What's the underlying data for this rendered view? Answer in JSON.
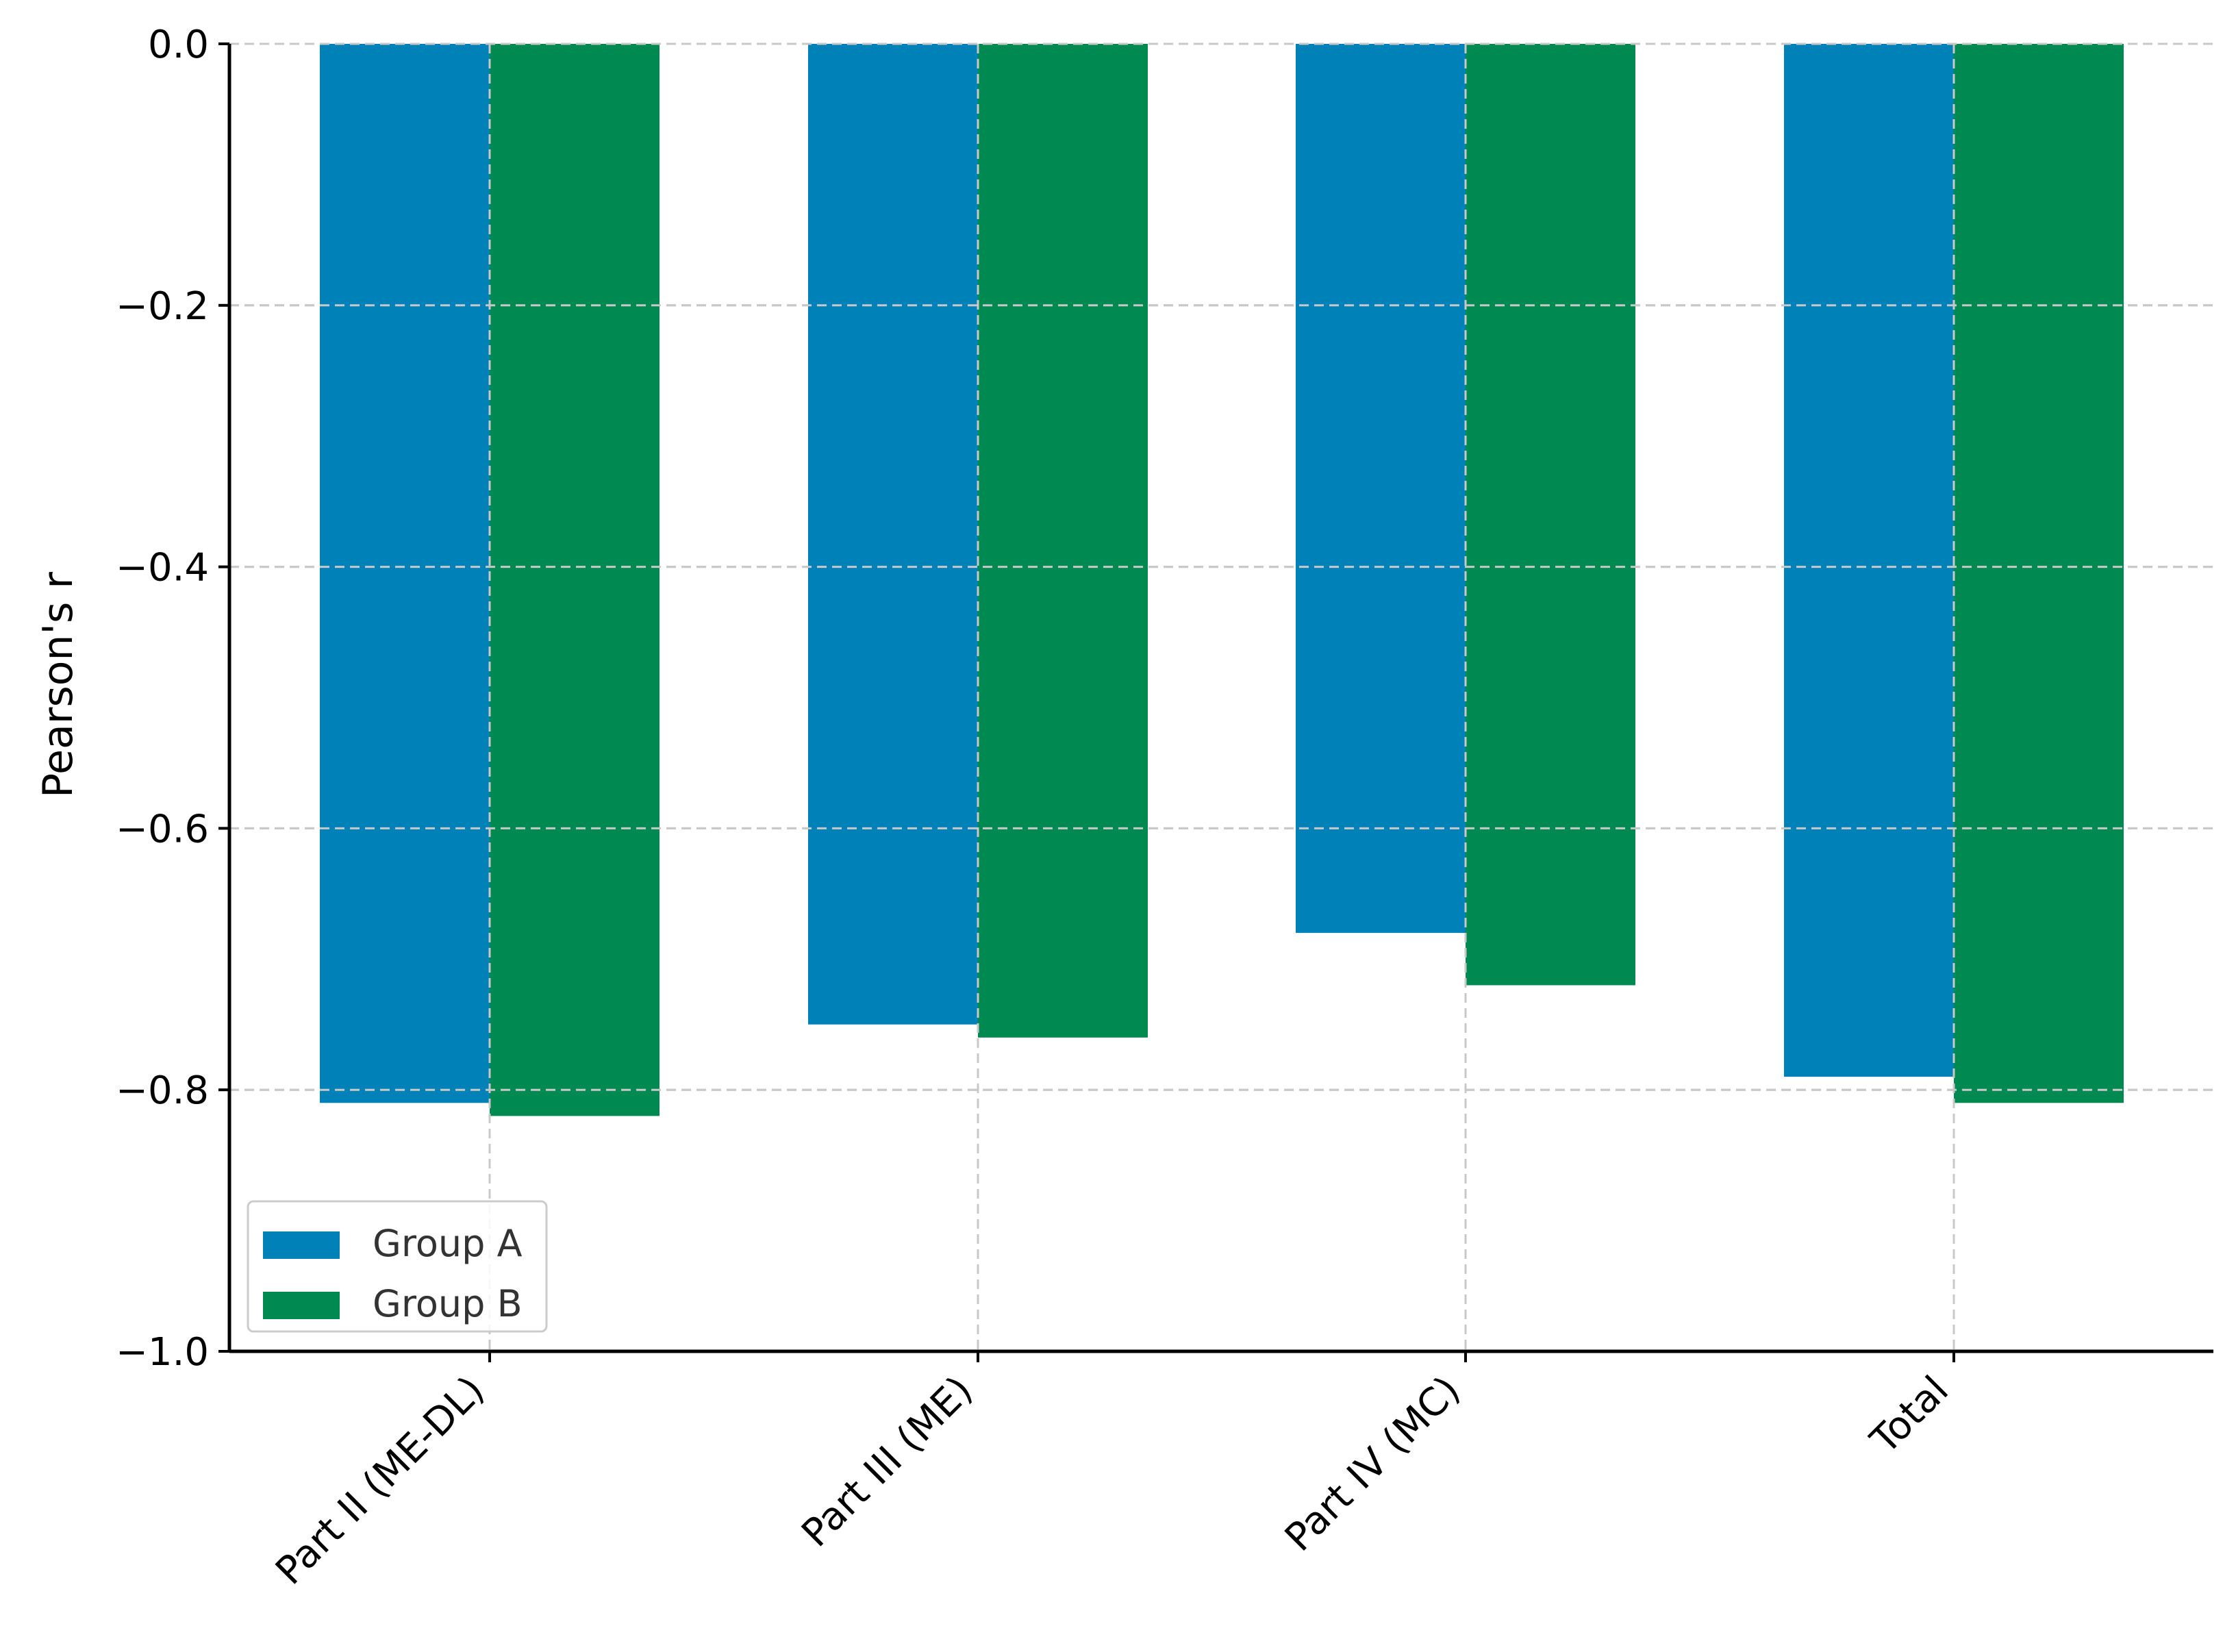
{
  "chart_data": {
    "type": "bar",
    "title": "",
    "xlabel": "",
    "ylabel": "Pearson's r",
    "categories": [
      "Part II (ME-DL)",
      "Part III (ME)",
      "Part IV (MC)",
      "Total"
    ],
    "series": [
      {
        "name": "Group A",
        "color": "#0081b8",
        "values": [
          -0.81,
          -0.75,
          -0.68,
          -0.79
        ]
      },
      {
        "name": "Group B",
        "color": "#008a52",
        "values": [
          -0.82,
          -0.76,
          -0.72,
          -0.81
        ]
      }
    ],
    "ylim": [
      -1.0,
      0.0
    ],
    "yticks": [
      0.0,
      -0.2,
      -0.4,
      -0.6,
      -0.8,
      -1.0
    ],
    "ytick_labels": [
      "0.0",
      "−0.2",
      "−0.4",
      "−0.6",
      "−0.8",
      "−1.0"
    ],
    "grid": true,
    "legend_position": "lower-left"
  }
}
